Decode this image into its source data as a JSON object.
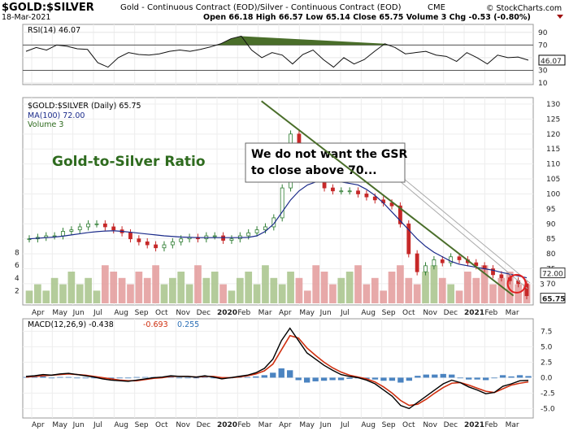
{
  "header": {
    "symbol": "$GOLD:$SILVER",
    "description": "Gold - Continuous Contract (EOD)/Silver - Continuous Contract (EOD)",
    "exchange": "CME",
    "date": "18-Mar-2021",
    "ohlc": "Open 66.18  High 66.57  Low 65.14  Close 65.75  Volume 3  Chg -0.53 (-0.80%)",
    "brand": "© StockCharts.com"
  },
  "annotations": {
    "title": "Gold-to-Silver Ratio",
    "callout_line1": "We do not want the GSR",
    "callout_line2": "to close above 70..."
  },
  "chart_data": [
    {
      "type": "line",
      "panel": "rsi",
      "legend": "RSI(14) 46.07",
      "ylim": [
        10,
        100
      ],
      "y_ticks": [
        "90",
        "70",
        "50",
        "30",
        "10"
      ],
      "reference_lines": [
        70,
        30
      ],
      "last_value": "46.07",
      "series": [
        {
          "values": [
            60,
            66,
            62,
            70,
            68,
            64,
            63,
            42,
            35,
            50,
            58,
            55,
            54,
            56,
            60,
            62,
            60,
            63,
            67,
            72,
            80,
            84,
            62,
            50,
            58,
            54,
            40,
            55,
            62,
            47,
            35,
            50,
            40,
            47,
            60,
            72,
            66,
            56,
            58,
            60,
            54,
            52,
            44,
            58,
            50,
            40,
            54,
            50,
            51,
            46
          ]
        }
      ]
    },
    {
      "type": "candlestick",
      "panel": "price",
      "legend": [
        "$GOLD:$SILVER (Daily) 65.75",
        "MA(100) 72.00",
        "Volume 3"
      ],
      "ylim": [
        64,
        130
      ],
      "y_ticks": [
        "130",
        "125",
        "120",
        "115",
        "110",
        "105",
        "100",
        "95",
        "90",
        "85",
        "80",
        "75",
        "70"
      ],
      "volume_ticks": [
        "8",
        "6",
        "4",
        "2"
      ],
      "x_labels": [
        "Apr",
        "May",
        "Jun",
        "Jul",
        "Aug",
        "Sep",
        "Oct",
        "Nov",
        "Dec",
        "2020",
        "Feb",
        "Mar",
        "Apr",
        "May",
        "Jun",
        "Jul",
        "Aug",
        "Sep",
        "Oct",
        "Nov",
        "Dec",
        "2021",
        "Feb",
        "Mar"
      ],
      "last_close": "65.75",
      "last_ma": "72.00",
      "volume_last": "3",
      "close": [
        85,
        85.5,
        86,
        86,
        87.5,
        88,
        89,
        90,
        90,
        89,
        88,
        87,
        85,
        84,
        83,
        82,
        83,
        84,
        85,
        85.5,
        85,
        86,
        86,
        84.5,
        85,
        86,
        87,
        88,
        89,
        92,
        102,
        120,
        115,
        110,
        106,
        102,
        101,
        101,
        101,
        100,
        99,
        98,
        97,
        96,
        90,
        80,
        74,
        76,
        78,
        77,
        79,
        78,
        77,
        76,
        75,
        73,
        72,
        71,
        70,
        66
      ],
      "ma100": [
        85,
        85.2,
        85.4,
        85.6,
        85.9,
        86.3,
        86.7,
        87.1,
        87.4,
        87.6,
        87.7,
        87.5,
        87.2,
        86.9,
        86.6,
        86.3,
        86,
        85.8,
        85.6,
        85.5,
        85.4,
        85.4,
        85.4,
        85.4,
        85.4,
        85.4,
        85.5,
        86,
        87.5,
        90,
        94,
        98,
        101,
        103,
        104,
        104.3,
        104.2,
        104,
        103.5,
        103,
        101.5,
        99.5,
        97,
        94,
        91,
        88,
        85,
        82.5,
        80.5,
        79,
        77.5,
        76.5,
        76,
        75.5,
        75,
        74.5,
        73.8,
        73.2,
        72.6,
        72
      ],
      "volume": [
        2,
        3,
        2,
        4,
        3,
        5,
        3,
        4,
        2,
        6,
        5,
        4,
        3,
        5,
        4,
        6,
        3,
        4,
        5,
        3,
        6,
        4,
        5,
        3,
        2,
        4,
        5,
        3,
        6,
        4,
        3,
        5,
        4,
        2,
        6,
        5,
        3,
        4,
        5,
        6,
        3,
        4,
        2,
        5,
        6,
        4,
        3,
        5,
        6,
        4,
        3,
        2,
        5,
        4,
        6,
        3,
        4,
        5,
        3,
        3
      ],
      "trendline": {
        "from": [
          "Mar 2020",
          131
        ],
        "to": [
          "Mar 2021",
          66
        ]
      }
    },
    {
      "type": "line",
      "panel": "macd",
      "legend": [
        "MACD(12,26,9) -0.438",
        "-0.693",
        "0.255"
      ],
      "ylim": [
        -6,
        9
      ],
      "y_ticks": [
        "7.5",
        "5.0",
        "2.5",
        "0.0",
        "-2.5",
        "-5.0"
      ],
      "series": [
        {
          "name": "MACD(12,26,9)",
          "values": [
            0.2,
            0.3,
            0.5,
            0.4,
            0.6,
            0.7,
            0.5,
            0.3,
            0.1,
            -0.2,
            -0.4,
            -0.5,
            -0.6,
            -0.4,
            -0.2,
            0,
            0.1,
            0.3,
            0.2,
            0.2,
            0.1,
            0.3,
            0.1,
            -0.2,
            0,
            0.2,
            0.4,
            0.8,
            1.5,
            3,
            6,
            8,
            6,
            4,
            3,
            2,
            1.2,
            0.5,
            0.2,
            0,
            -0.4,
            -1,
            -2,
            -3,
            -4.5,
            -5,
            -4,
            -3,
            -2,
            -1,
            -0.4,
            -0.8,
            -1.5,
            -2,
            -2.6,
            -2.4,
            -1.4,
            -1,
            -0.5,
            -0.44
          ]
        },
        {
          "name": "-0.693",
          "values": [
            0.1,
            0.2,
            0.3,
            0.4,
            0.5,
            0.6,
            0.5,
            0.4,
            0.2,
            0,
            -0.2,
            -0.4,
            -0.5,
            -0.5,
            -0.3,
            -0.1,
            0,
            0.2,
            0.2,
            0.2,
            0.1,
            0.2,
            0.2,
            0,
            0,
            0.1,
            0.3,
            0.6,
            1.1,
            2.2,
            4.5,
            6.8,
            6.4,
            4.8,
            3.6,
            2.5,
            1.6,
            0.9,
            0.4,
            0.1,
            -0.2,
            -0.7,
            -1.5,
            -2.5,
            -3.7,
            -4.5,
            -4.3,
            -3.5,
            -2.5,
            -1.6,
            -0.9,
            -0.8,
            -1.2,
            -1.7,
            -2.2,
            -2.4,
            -1.8,
            -1.2,
            -0.9,
            -0.69
          ]
        },
        {
          "name": "0.255",
          "values": [
            0.1,
            0.1,
            0.2,
            0,
            0.1,
            0.1,
            0,
            -0.1,
            -0.1,
            -0.2,
            -0.2,
            -0.1,
            -0.1,
            0.1,
            0.1,
            0.1,
            0.1,
            0.1,
            0,
            0,
            0,
            0.1,
            -0.1,
            -0.2,
            0,
            0.1,
            0.1,
            0.2,
            0.4,
            0.8,
            1.5,
            1.2,
            -0.4,
            -0.8,
            -0.6,
            -0.5,
            -0.4,
            -0.4,
            -0.2,
            -0.1,
            -0.2,
            -0.3,
            -0.5,
            -0.5,
            -0.8,
            -0.5,
            0.3,
            0.5,
            0.5,
            0.6,
            0.5,
            0,
            -0.3,
            -0.3,
            -0.4,
            0,
            0.4,
            0.2,
            0.4,
            0.26
          ]
        }
      ]
    }
  ]
}
